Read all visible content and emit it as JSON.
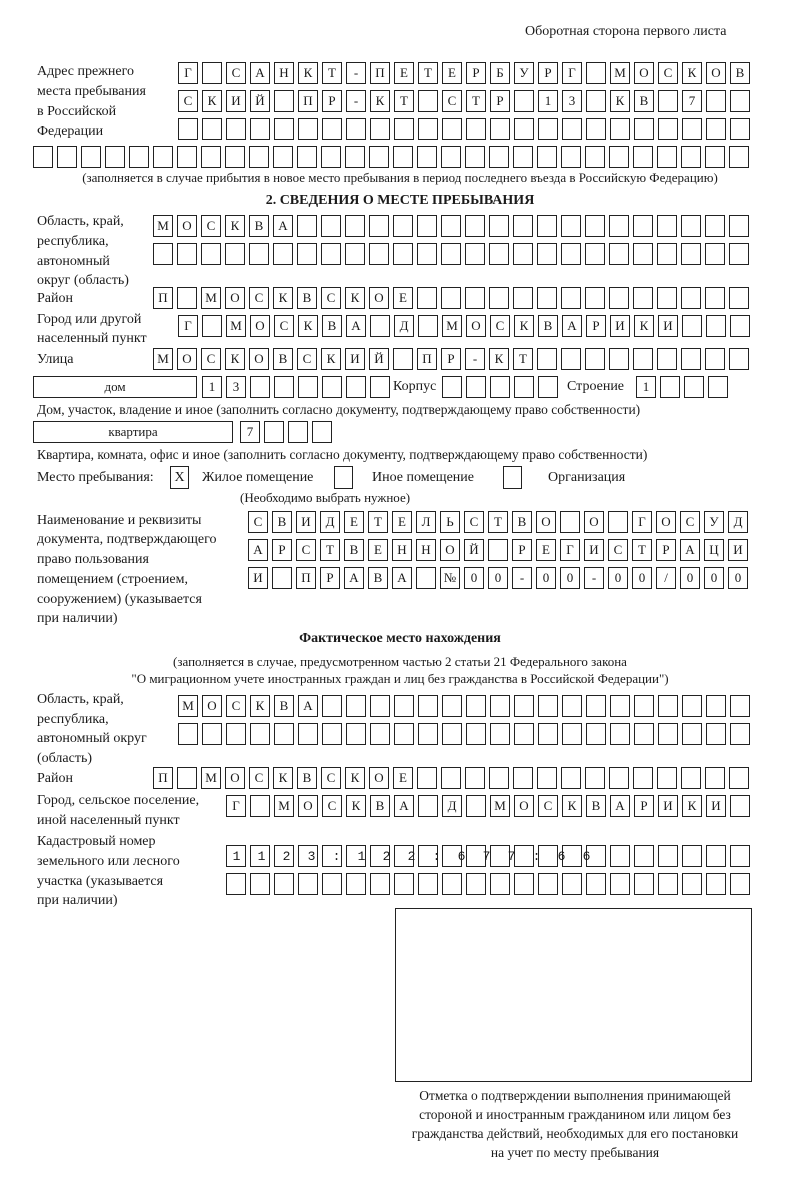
{
  "header": {
    "sheet_label": "Оборотная сторона первого листа"
  },
  "previous_address": {
    "label_lines": [
      "Адрес прежнего",
      "места пребывания",
      "в Российской",
      "Федерации"
    ],
    "rows": [
      "Г САНКТ-ПЕТЕРБУРГ МОСКОВ",
      "СКИЙ ПР-КТ СТР 13 КВ 7  ",
      "                        ",
      "                              "
    ],
    "note": "(заполняется в случае прибытия в новое место пребывания в период последнего въезда в Российскую Федерацию)"
  },
  "section2": {
    "title": "2. СВЕДЕНИЯ О МЕСТЕ ПРЕБЫВАНИЯ",
    "region_label_lines": [
      "Область, край,",
      "республика,",
      "автономный",
      "округ (область)"
    ],
    "region_rows": [
      "МОСКВА                   ",
      "                         "
    ],
    "district_label": "Район",
    "district_row": "П МОСКВСКОЕ              ",
    "city_label_lines": [
      "Город или другой",
      "населенный пункт"
    ],
    "city_row": "Г МОСКВА Д МОСКВАРИКИ   ",
    "street_label": "Улица",
    "street_row": "МОСКОВСКИЙ ПР-КТ         ",
    "house_type": "дом",
    "house_row": "13      ",
    "korpus_label": "Корпус",
    "korpus_row": "     ",
    "building_label": "Строение",
    "building_row": "1   ",
    "house_note": "Дом, участок, владение и иное (заполнить согласно документу, подтверждающему право собственности)",
    "flat_type": "квартира",
    "flat_row": "7   ",
    "flat_note": "Квартира, комната, офис и иное (заполнить согласно документу, подтверждающему право собственности)",
    "stay_place_label": "Место пребывания:",
    "stay_options": [
      {
        "label": "Жилое помещение",
        "mark": "X"
      },
      {
        "label": "Иное помещение",
        "mark": ""
      },
      {
        "label": "Организация",
        "mark": ""
      }
    ],
    "stay_hint": "(Необходимо выбрать нужное)",
    "doc_label_lines": [
      "Наименование и реквизиты",
      "документа, подтверждающего",
      "право пользования",
      "помещением (строением,",
      "сооружением) (указывается",
      "при наличии)"
    ],
    "doc_rows": [
      "СВИДЕТЕЛЬСТВО О ГОСУД",
      "АРСТВЕННОЙ РЕГИСТРАЦИ",
      "И ПРАВА №00-00-00/000"
    ]
  },
  "actual": {
    "title": "Фактическое место нахождения",
    "note_lines": [
      "(заполняется в случае, предусмотренном частью 2 статьи 21 Федерального закона",
      "\"О миграционном учете иностранных граждан и лиц без гражданства в Российской Федерации\")"
    ],
    "region_label_lines": [
      "Область, край,",
      "республика,",
      "автономный округ",
      "(область)"
    ],
    "region_rows": [
      "МОСКВА                  ",
      "                        "
    ],
    "district_label": "Район",
    "district_row": "П МОСКВСКОЕ              ",
    "city_label_lines": [
      "Город, сельское поселение,",
      "иной населенный пункт"
    ],
    "city_row": "Г МОСКВА Д МОСКВАРИКИ ",
    "cadastral_label_lines": [
      "Кадастровый номер",
      "земельного или лесного",
      "участка (указывается",
      "при наличии)"
    ],
    "cadastral_rows": [
      "1123:122:677:66       ",
      "                      "
    ]
  },
  "stamp": {
    "caption_lines": [
      "Отметка о подтверждении выполнения принимающей",
      "стороной и иностранным гражданином или лицом без",
      "гражданства действий, необходимых для его постановки",
      "на учет по месту пребывания"
    ]
  }
}
